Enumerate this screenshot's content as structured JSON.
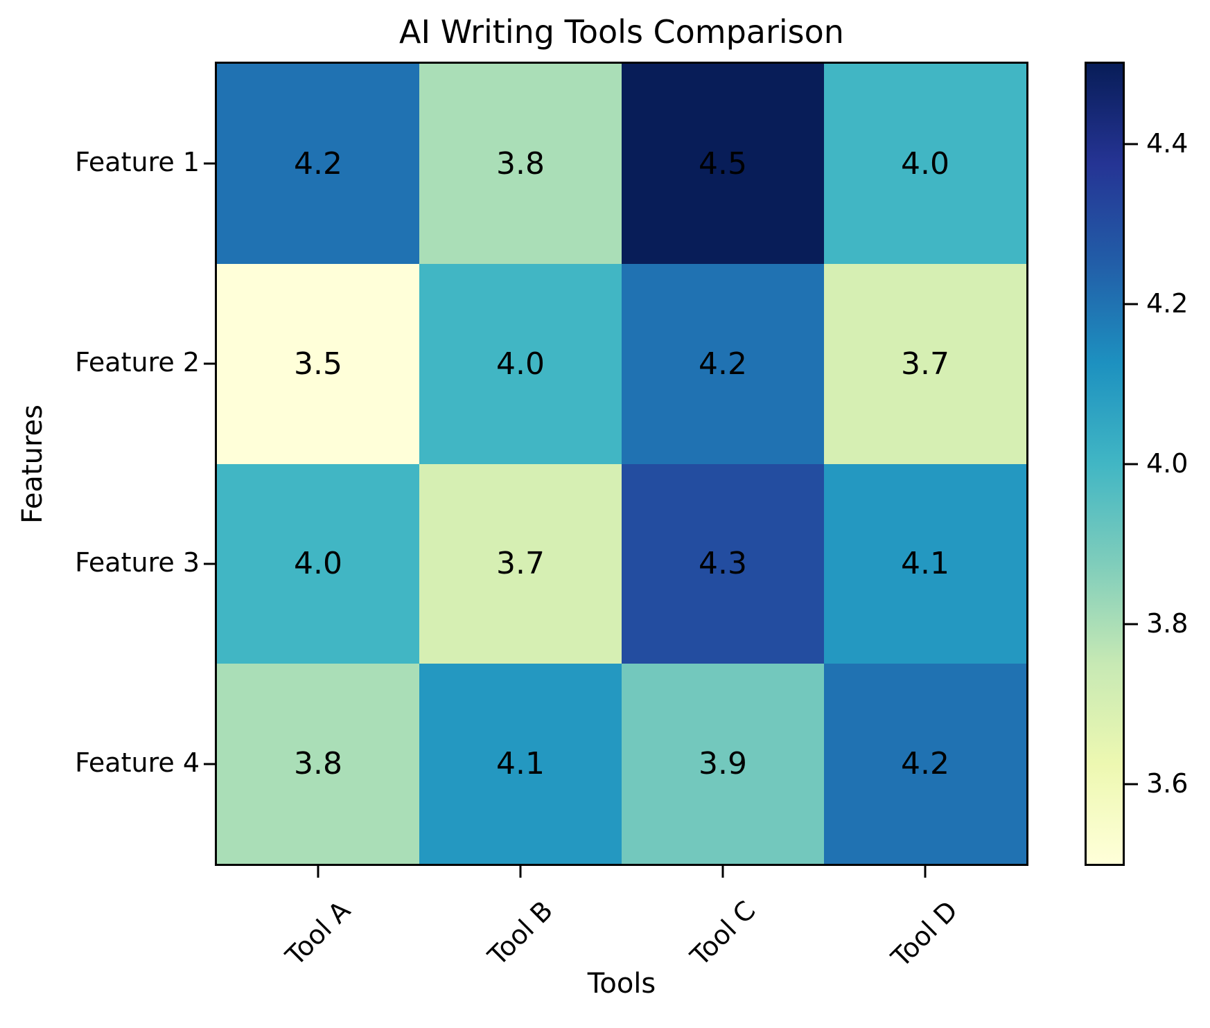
{
  "chart_data": {
    "type": "heatmap",
    "title": "AI Writing Tools Comparison",
    "xlabel": "Tools",
    "ylabel": "Features",
    "columns": [
      "Tool A",
      "Tool B",
      "Tool C",
      "Tool D"
    ],
    "rows": [
      "Feature 1",
      "Feature 2",
      "Feature 3",
      "Feature 4"
    ],
    "values": [
      [
        4.2,
        3.8,
        4.5,
        4.0
      ],
      [
        3.5,
        4.0,
        4.2,
        3.7
      ],
      [
        4.0,
        3.7,
        4.3,
        4.1
      ],
      [
        3.8,
        4.1,
        3.9,
        4.2
      ]
    ],
    "value_format_decimals": 1,
    "vmin": 3.5,
    "vmax": 4.5,
    "colormap": "YlGnBu",
    "colormap_stops": [
      "#ffffd9",
      "#edf8b1",
      "#c7e9b4",
      "#7fcdbb",
      "#41b6c4",
      "#1d91c0",
      "#225ea8",
      "#253494",
      "#081d58"
    ],
    "colorbar_ticks": [
      4.4,
      4.2,
      4.0,
      3.8,
      3.6
    ],
    "annotation_color": "#000000",
    "grid": false,
    "legend_position": "right-colorbar"
  }
}
